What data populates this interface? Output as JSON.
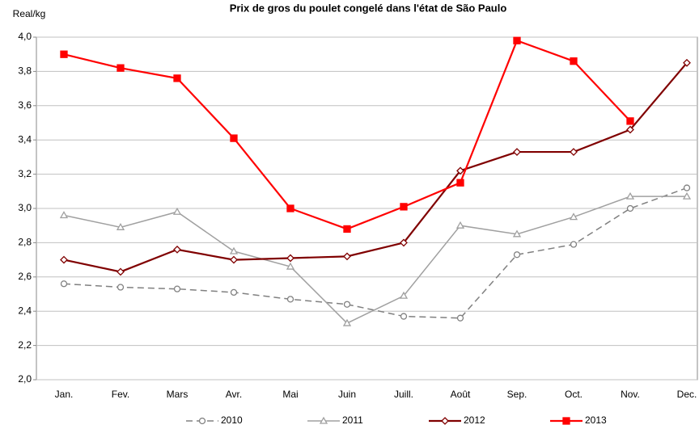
{
  "chart_data": {
    "type": "line",
    "title": "Prix de gros du poulet congelé dans l'état de São Paulo",
    "y_label": "Real/kg",
    "categories": [
      "Jan.",
      "Fev.",
      "Mars",
      "Avr.",
      "Mai",
      "Juin",
      "Juill.",
      "Août",
      "Sep.",
      "Oct.",
      "Nov.",
      "Dec."
    ],
    "ylim": [
      2.0,
      4.0
    ],
    "yticks": [
      {
        "value": 2.0,
        "label": "2,0"
      },
      {
        "value": 2.2,
        "label": "2,2"
      },
      {
        "value": 2.4,
        "label": "2,4"
      },
      {
        "value": 2.6,
        "label": "2,6"
      },
      {
        "value": 2.8,
        "label": "2,8"
      },
      {
        "value": 3.0,
        "label": "3,0"
      },
      {
        "value": 3.2,
        "label": "3,2"
      },
      {
        "value": 3.4,
        "label": "3,4"
      },
      {
        "value": 3.6,
        "label": "3,6"
      },
      {
        "value": 3.8,
        "label": "3,8"
      },
      {
        "value": 4.0,
        "label": "4,0"
      }
    ],
    "grid": true,
    "legend": "bottom",
    "series": [
      {
        "name": "2010",
        "color": "#808080",
        "marker": "circle",
        "dashed": true,
        "values": [
          2.56,
          2.54,
          2.53,
          2.51,
          2.47,
          2.44,
          2.37,
          2.36,
          2.73,
          2.79,
          3.0,
          3.12
        ]
      },
      {
        "name": "2011",
        "color": "#a0a0a0",
        "marker": "triangle",
        "dashed": false,
        "values": [
          2.96,
          2.89,
          2.98,
          2.75,
          2.66,
          2.33,
          2.49,
          2.9,
          2.85,
          2.95,
          3.07,
          3.07
        ]
      },
      {
        "name": "2012",
        "color": "#800000",
        "marker": "diamond",
        "dashed": false,
        "values": [
          2.7,
          2.63,
          2.76,
          2.7,
          2.71,
          2.72,
          2.8,
          3.22,
          3.33,
          3.33,
          3.46,
          3.85
        ]
      },
      {
        "name": "2013",
        "color": "#ff0000",
        "marker": "square",
        "dashed": false,
        "values": [
          3.9,
          3.82,
          3.76,
          3.41,
          3.0,
          2.88,
          3.01,
          3.15,
          3.98,
          3.86,
          3.51,
          null
        ]
      }
    ]
  }
}
